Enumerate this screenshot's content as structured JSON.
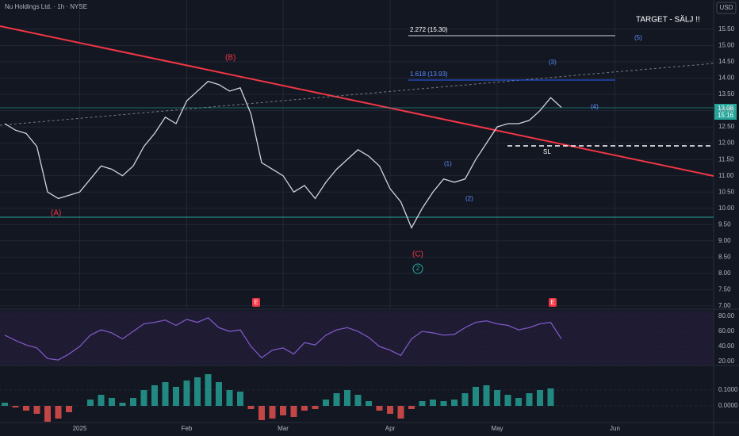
{
  "header": {
    "symbol": "Nu Holdings Ltd. · 1h · NYSE",
    "currency": "USD",
    "last_price": "13.08",
    "countdown": "15:16"
  },
  "annotations": [
    "TARGET - SÄLJ !!",
    "2.272 (15.30)",
    "1.618 (13.93)",
    "(B)",
    "(A)",
    "(C)",
    "(1)",
    "(2)",
    "(3)",
    "(4)",
    "(5)",
    "SL",
    "2",
    "E",
    "E"
  ],
  "chart_data": [
    {
      "type": "line",
      "color": "#d1d4dc",
      "categories": [
        null,
        null,
        null,
        null,
        null,
        null,
        null,
        "2025",
        null,
        null,
        null,
        null,
        null,
        null,
        null,
        null,
        null,
        "Feb",
        null,
        null,
        null,
        null,
        null,
        null,
        null,
        null,
        "Mar",
        null,
        null,
        null,
        null,
        null,
        null,
        null,
        null,
        null,
        "Apr",
        null,
        null,
        null,
        null,
        null,
        null,
        null,
        null,
        null,
        "May",
        null,
        null,
        null,
        null,
        null,
        null,
        null,
        null,
        null,
        null,
        "Jun"
      ],
      "values": [
        12.6,
        12.4,
        12.3,
        11.9,
        10.5,
        10.3,
        10.4,
        10.5,
        10.9,
        11.3,
        11.2,
        11.0,
        11.3,
        11.9,
        12.3,
        12.8,
        12.6,
        13.3,
        13.6,
        13.9,
        13.8,
        13.6,
        13.7,
        12.9,
        11.4,
        11.2,
        11.0,
        10.5,
        10.7,
        10.3,
        10.8,
        11.2,
        11.5,
        11.8,
        11.6,
        11.3,
        10.6,
        10.2,
        9.4,
        10.0,
        10.5,
        10.9,
        10.8,
        10.9,
        11.5,
        12.0,
        12.5,
        12.6,
        12.6,
        12.7,
        13.0,
        13.4,
        13.1,
        null,
        null,
        null,
        null,
        null
      ],
      "ylim": [
        6.9,
        16.4
      ],
      "yticks": [
        {
          "value": 7,
          "label": "7.00"
        },
        {
          "value": 7.5,
          "label": "7.50"
        },
        {
          "value": 8,
          "label": "8.00"
        },
        {
          "value": 8.5,
          "label": "8.50"
        },
        {
          "value": 9,
          "label": "9.00"
        },
        {
          "value": 9.5,
          "label": "9.50"
        },
        {
          "value": 10,
          "label": "10.00"
        },
        {
          "value": 10.5,
          "label": "10.50"
        },
        {
          "value": 11,
          "label": "11.00"
        },
        {
          "value": 11.5,
          "label": "11.50"
        },
        {
          "value": 12,
          "label": "12.00"
        },
        {
          "value": 12.5,
          "label": "12.50"
        },
        {
          "value": 13,
          "label": "13.00"
        },
        {
          "value": 13.5,
          "label": "13.50"
        },
        {
          "value": 14,
          "label": "14.00"
        },
        {
          "value": 14.5,
          "label": "14.50"
        },
        {
          "value": 15,
          "label": "15.00"
        },
        {
          "value": 15.5,
          "label": "15.50"
        }
      ],
      "grid": true
    },
    {
      "type": "line",
      "color": "#7e57c2",
      "values": [
        55,
        48,
        42,
        38,
        24,
        22,
        30,
        40,
        55,
        62,
        58,
        50,
        60,
        70,
        72,
        75,
        68,
        76,
        72,
        78,
        65,
        60,
        62,
        40,
        25,
        35,
        38,
        30,
        45,
        42,
        55,
        62,
        65,
        60,
        52,
        40,
        35,
        28,
        50,
        60,
        58,
        55,
        56,
        65,
        72,
        74,
        70,
        68,
        62,
        65,
        70,
        72,
        50
      ],
      "ylim": [
        15.8,
        87.4
      ],
      "yticks": [
        {
          "value": 20,
          "label": "20.00"
        },
        {
          "value": 40,
          "label": "40.00"
        },
        {
          "value": 60,
          "label": "60.00"
        },
        {
          "value": 80,
          "label": "80.00"
        }
      ]
    },
    {
      "type": "bar",
      "color": "#26a69a",
      "values": [
        0.02,
        -0.01,
        -0.03,
        -0.05,
        -0.1,
        -0.08,
        -0.04,
        0.0,
        0.04,
        0.07,
        0.05,
        0.02,
        0.05,
        0.1,
        0.13,
        0.15,
        0.12,
        0.16,
        0.18,
        0.2,
        0.15,
        0.1,
        0.09,
        -0.02,
        -0.09,
        -0.08,
        -0.06,
        -0.07,
        -0.03,
        -0.02,
        0.04,
        0.08,
        0.1,
        0.07,
        0.03,
        -0.03,
        -0.05,
        -0.08,
        -0.02,
        0.03,
        0.04,
        0.03,
        0.04,
        0.08,
        0.12,
        0.13,
        0.1,
        0.07,
        0.05,
        0.08,
        0.1,
        0.11,
        0.0
      ],
      "ylim": [
        -0.1,
        0.245
      ],
      "yticks": [
        {
          "value": 0,
          "label": "0.0000"
        },
        {
          "value": 0.1,
          "label": "0.1000"
        }
      ]
    }
  ]
}
